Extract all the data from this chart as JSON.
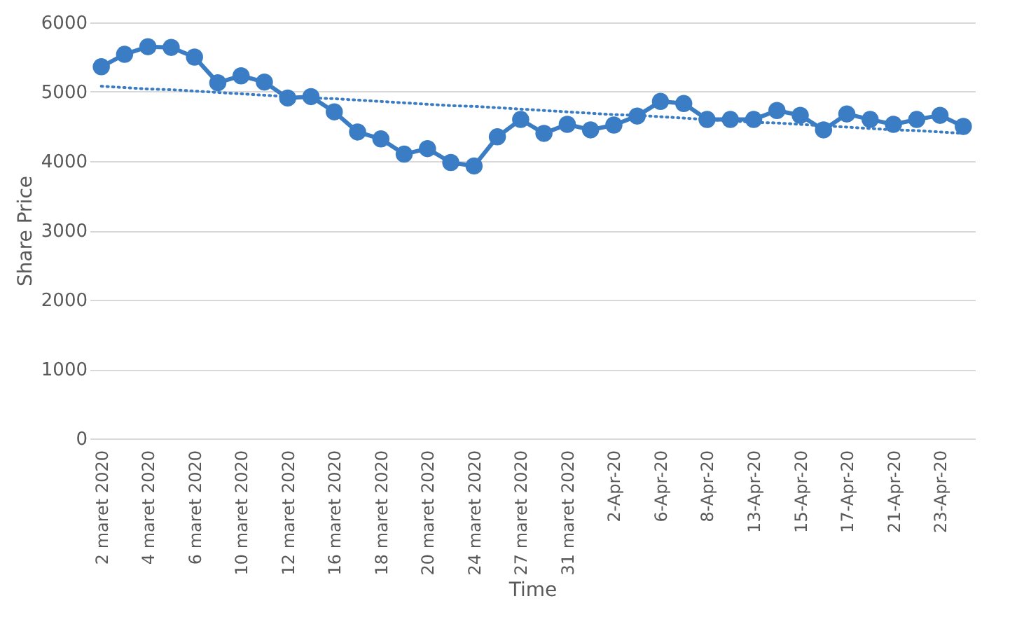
{
  "chart_data": {
    "type": "line",
    "xlabel": "Time",
    "ylabel": "Share Price",
    "categories": [
      "2 maret 2020",
      null,
      "4 maret 2020",
      null,
      "6 maret 2020",
      null,
      "10 maret 2020",
      null,
      "12 maret 2020",
      null,
      "16 maret 2020",
      null,
      "18 maret 2020",
      null,
      "20 maret 2020",
      null,
      "24 maret 2020",
      null,
      "27 maret 2020",
      null,
      "31 maret 2020",
      null,
      "2-Apr-20",
      null,
      "6-Apr-20",
      null,
      "8-Apr-20",
      null,
      "13-Apr-20",
      null,
      "15-Apr-20",
      null,
      "17-Apr-20",
      null,
      "21-Apr-20",
      null,
      "23-Apr-20",
      null
    ],
    "series": [
      {
        "color": "#3b7dc4",
        "marker": "circle",
        "line_style": "solid",
        "values": [
          5360,
          5540,
          5650,
          5640,
          5500,
          5130,
          5230,
          5140,
          4910,
          4930,
          4710,
          4420,
          4320,
          4100,
          4180,
          3980,
          3930,
          4350,
          4600,
          4400,
          4530,
          4450,
          4520,
          4650,
          4860,
          4830,
          4600,
          4600,
          4600,
          4730,
          4660,
          4450,
          4680,
          4600,
          4530,
          4600,
          4660,
          4500
        ]
      },
      {
        "type": "line",
        "color": "#3b7dc4",
        "marker": "none",
        "line_style": "dotted",
        "values": [
          5080,
          5060,
          5040,
          5030,
          5010,
          4990,
          4970,
          4950,
          4930,
          4910,
          4900,
          4880,
          4860,
          4840,
          4820,
          4800,
          4790,
          4770,
          4750,
          4730,
          4710,
          4690,
          4670,
          4660,
          4640,
          4620,
          4600,
          4580,
          4560,
          4550,
          4530,
          4510,
          4490,
          4470,
          4450,
          4440,
          4420,
          4400
        ]
      }
    ],
    "ylim": [
      0,
      6000
    ],
    "yticks": [
      0,
      1000,
      2000,
      3000,
      4000,
      5000,
      6000
    ],
    "grid": "y"
  }
}
